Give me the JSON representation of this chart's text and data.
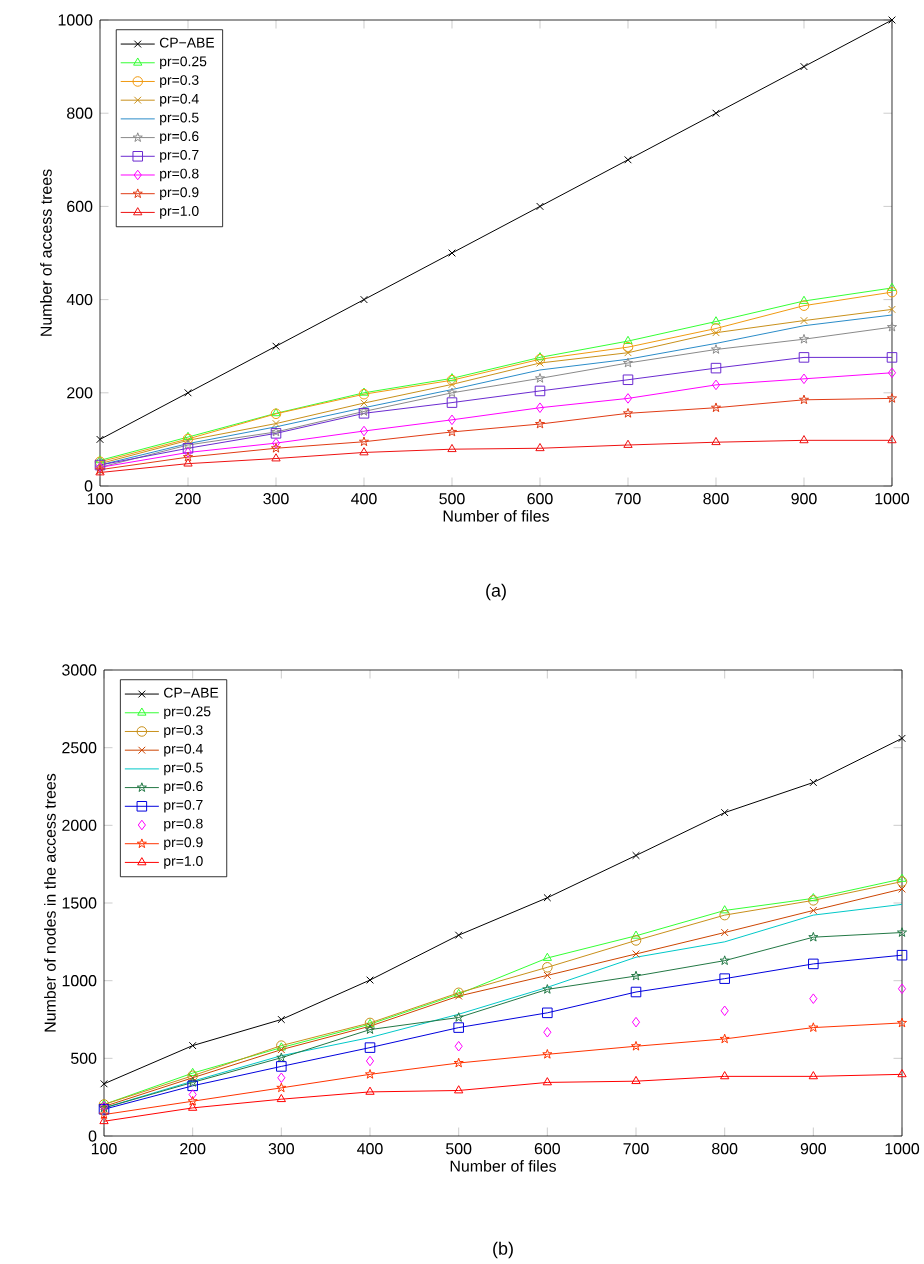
{
  "chart_data": [
    {
      "type": "line",
      "xlabel": "Number of files",
      "ylabel": "Number of access trees",
      "annotations": [
        "(a)"
      ],
      "x": [
        100,
        200,
        300,
        400,
        500,
        600,
        700,
        800,
        900,
        1000
      ],
      "xlim": [
        100,
        1000
      ],
      "xticks": [
        100,
        200,
        300,
        400,
        500,
        600,
        700,
        800,
        900,
        1000
      ],
      "ylim": [
        0,
        1000
      ],
      "yticks": [
        0,
        200,
        400,
        600,
        800,
        1000
      ],
      "legend": "top left",
      "series": [
        {
          "name": "CP−ABE",
          "color": "#000000",
          "marker": "cross",
          "values": [
            100,
            200,
            300,
            400,
            500,
            600,
            700,
            800,
            900,
            1000
          ]
        },
        {
          "name": "pr=0.25",
          "color": "#33ff33",
          "marker": "triangle",
          "values": [
            55,
            105,
            156,
            200,
            231,
            276,
            311,
            353,
            397,
            425
          ]
        },
        {
          "name": "pr=0.3",
          "color": "#f09a10",
          "marker": "circle",
          "values": [
            52,
            101,
            155,
            197,
            227,
            272,
            298,
            338,
            387,
            416
          ]
        },
        {
          "name": "pr=0.4",
          "color": "#c8901a",
          "marker": "cross",
          "values": [
            48,
            98,
            134,
            178,
            218,
            264,
            286,
            329,
            355,
            379
          ]
        },
        {
          "name": "pr=0.5",
          "color": "#2a8cc8",
          "marker": "none",
          "values": [
            45,
            91,
            127,
            168,
            207,
            249,
            272,
            306,
            344,
            367
          ]
        },
        {
          "name": "pr=0.6",
          "color": "#8a8a8a",
          "marker": "star",
          "values": [
            40,
            88,
            116,
            160,
            200,
            231,
            264,
            293,
            315,
            341
          ]
        },
        {
          "name": "pr=0.7",
          "color": "#6a2ad0",
          "marker": "square",
          "values": [
            45,
            81,
            113,
            156,
            179,
            204,
            228,
            253,
            276,
            276
          ]
        },
        {
          "name": "pr=0.8",
          "color": "#ff00ff",
          "marker": "diamond",
          "values": [
            40,
            72,
            92,
            118,
            142,
            168,
            188,
            217,
            230,
            243
          ]
        },
        {
          "name": "pr=0.9",
          "color": "#e03a14",
          "marker": "star",
          "values": [
            35,
            62,
            81,
            95,
            116,
            133,
            156,
            168,
            185,
            188
          ]
        },
        {
          "name": "pr=1.0",
          "color": "#ee1111",
          "marker": "triangle",
          "values": [
            29,
            48,
            59,
            72,
            79,
            81,
            88,
            94,
            98,
            98
          ]
        }
      ]
    },
    {
      "type": "line",
      "xlabel": "Number of files",
      "ylabel": "Number of nodes in the access trees",
      "annotations": [
        "(b)"
      ],
      "x": [
        100,
        200,
        300,
        400,
        500,
        600,
        700,
        800,
        900,
        1000
      ],
      "xlim": [
        100,
        1000
      ],
      "xticks": [
        100,
        200,
        300,
        400,
        500,
        600,
        700,
        800,
        900,
        1000
      ],
      "ylim": [
        0,
        3000
      ],
      "yticks": [
        0,
        500,
        1000,
        1500,
        2000,
        2500,
        3000
      ],
      "legend": "top left",
      "series": [
        {
          "name": "CP−ABE",
          "color": "#000000",
          "marker": "cross",
          "values": [
            336,
            582,
            750,
            1004,
            1293,
            1534,
            1806,
            2082,
            2276,
            2560
          ]
        },
        {
          "name": "pr=0.25",
          "color": "#33ff33",
          "marker": "triangle",
          "values": [
            203,
            405,
            569,
            720,
            914,
            1146,
            1289,
            1452,
            1530,
            1655
          ]
        },
        {
          "name": "pr=0.3",
          "color": "#c8901a",
          "marker": "circle",
          "values": [
            203,
            388,
            582,
            728,
            922,
            1086,
            1259,
            1422,
            1517,
            1638
          ]
        },
        {
          "name": "pr=0.4",
          "color": "#cc4400",
          "marker": "cross",
          "values": [
            190,
            375,
            556,
            707,
            901,
            1034,
            1172,
            1310,
            1452,
            1590
          ]
        },
        {
          "name": "pr=0.5",
          "color": "#00c8c8",
          "marker": "none",
          "values": [
            181,
            353,
            517,
            634,
            784,
            957,
            1151,
            1250,
            1422,
            1491
          ]
        },
        {
          "name": "pr=0.6",
          "color": "#227744",
          "marker": "star",
          "values": [
            181,
            345,
            504,
            685,
            763,
            944,
            1030,
            1129,
            1280,
            1310
          ]
        },
        {
          "name": "pr=0.7",
          "color": "#0000dd",
          "marker": "square",
          "values": [
            172,
            323,
            448,
            569,
            698,
            793,
            927,
            1013,
            1108,
            1164
          ]
        },
        {
          "name": "pr=0.8",
          "type": "scatter",
          "color": "#ff00ff",
          "marker": "diamond",
          "values": [
            190,
            267,
            375,
            483,
            578,
            668,
            733,
            806,
            884,
            948
          ]
        },
        {
          "name": "pr=0.9",
          "color": "#ff3300",
          "marker": "star",
          "values": [
            138,
            224,
            310,
            397,
            470,
            526,
            578,
            625,
            698,
            728
          ]
        },
        {
          "name": "pr=1.0",
          "color": "#ff0000",
          "marker": "triangle",
          "values": [
            95,
            181,
            237,
            284,
            293,
            345,
            353,
            384,
            384,
            397
          ]
        }
      ]
    }
  ]
}
